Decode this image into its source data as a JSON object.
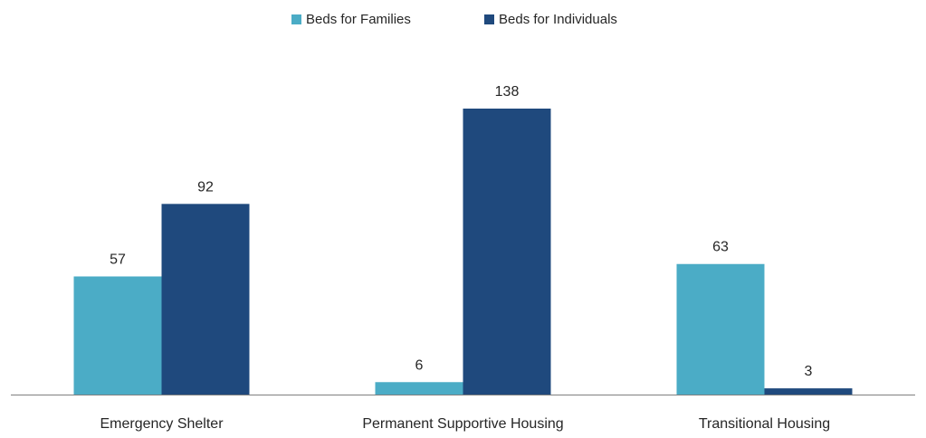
{
  "colors": {
    "families": "#4bacc6",
    "individuals": "#1f497d",
    "axis": "#7f7f7f",
    "text": "#262626"
  },
  "chart_data": {
    "type": "bar",
    "categories": [
      "Emergency Shelter",
      "Permanent Supportive Housing",
      "Transitional Housing"
    ],
    "series": [
      {
        "name": "Beds for Families",
        "values": [
          57,
          6,
          63
        ]
      },
      {
        "name": "Beds for Individuals",
        "values": [
          92,
          138,
          3
        ]
      }
    ],
    "legend_position": "top",
    "data_labels": true,
    "grid": false,
    "ylim": [
      0,
      140
    ]
  }
}
